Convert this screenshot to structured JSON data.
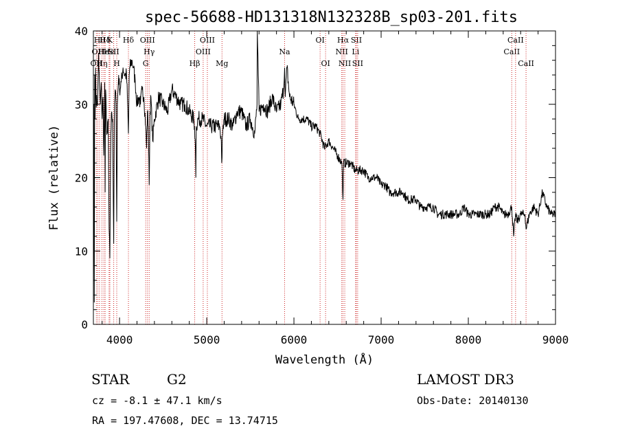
{
  "chart_data": {
    "type": "line",
    "title": "spec-56688-HD131318N132328B_sp03-201.fits",
    "xlabel": "Wavelength (Å)",
    "ylabel": "Flux (relative)",
    "xlim": [
      3700,
      9000
    ],
    "ylim": [
      0,
      40
    ],
    "xticks": [
      4000,
      5000,
      6000,
      7000,
      8000,
      9000
    ],
    "yticks": [
      0,
      10,
      20,
      30,
      40
    ],
    "series": [
      {
        "name": "spectrum",
        "x": [
          3700,
          3705,
          3710,
          3715,
          3720,
          3725,
          3730,
          3740,
          3750,
          3760,
          3770,
          3780,
          3790,
          3800,
          3810,
          3820,
          3830,
          3835,
          3840,
          3850,
          3860,
          3870,
          3880,
          3889,
          3900,
          3910,
          3920,
          3933,
          3940,
          3950,
          3960,
          3968,
          3975,
          3990,
          4000,
          4020,
          4040,
          4060,
          4080,
          4090,
          4102,
          4110,
          4120,
          4140,
          4160,
          4180,
          4200,
          4220,
          4240,
          4260,
          4280,
          4300,
          4310,
          4320,
          4330,
          4340,
          4350,
          4360,
          4380,
          4400,
          4450,
          4500,
          4550,
          4600,
          4650,
          4700,
          4750,
          4800,
          4850,
          4860,
          4870,
          4875,
          4880,
          4900,
          4950,
          5000,
          5050,
          5100,
          5150,
          5167,
          5172,
          5183,
          5200,
          5250,
          5300,
          5350,
          5400,
          5450,
          5500,
          5550,
          5577,
          5580,
          5600,
          5650,
          5700,
          5750,
          5800,
          5850,
          5880,
          5893,
          5900,
          5920,
          5950,
          6000,
          6050,
          6100,
          6150,
          6200,
          6250,
          6300,
          6350,
          6400,
          6450,
          6500,
          6550,
          6563,
          6570,
          6600,
          6650,
          6700,
          6750,
          6800,
          6850,
          6900,
          6950,
          7000,
          7050,
          7100,
          7150,
          7200,
          7250,
          7300,
          7350,
          7400,
          7450,
          7500,
          7550,
          7600,
          7650,
          7700,
          7750,
          7800,
          7850,
          7900,
          7950,
          8000,
          8050,
          8100,
          8150,
          8200,
          8250,
          8300,
          8350,
          8400,
          8450,
          8498,
          8520,
          8542,
          8560,
          8600,
          8620,
          8650,
          8662,
          8700,
          8750,
          8800,
          8850,
          8900,
          8950,
          9000
        ],
        "y": [
          5,
          30,
          3,
          34,
          28,
          35,
          31,
          30,
          31,
          37,
          32,
          30,
          33,
          28,
          31,
          23,
          33,
          18,
          32,
          27,
          26,
          28,
          13,
          9,
          26,
          29,
          28,
          11,
          28,
          32,
          30,
          14,
          30,
          34,
          32,
          33,
          35,
          34,
          34,
          31,
          26,
          34,
          35,
          36,
          35,
          33,
          30,
          31,
          30,
          32,
          31,
          27,
          24,
          29,
          27,
          19,
          29,
          31,
          25,
          28,
          31,
          30,
          29,
          32,
          31,
          30,
          30,
          29,
          28,
          27,
          24,
          20,
          27,
          28,
          28,
          27,
          27,
          27,
          27,
          25,
          22,
          26,
          28,
          28,
          27,
          29,
          29,
          27,
          28,
          26,
          30,
          40,
          29,
          30,
          29,
          31,
          29,
          30,
          32,
          35,
          31,
          35,
          31,
          30,
          28,
          28,
          28,
          27,
          27,
          26,
          24,
          25,
          24,
          23,
          22,
          17,
          22,
          22,
          22,
          21,
          21,
          21,
          20,
          20,
          20,
          19,
          19,
          18,
          18,
          18,
          18,
          17,
          17,
          17,
          16,
          16,
          16,
          16,
          15,
          15,
          15,
          15,
          15,
          15,
          16,
          15,
          15,
          15,
          15,
          15,
          15,
          16,
          16,
          15,
          15,
          16,
          12,
          15,
          14,
          15,
          15,
          15,
          13,
          15,
          16,
          15,
          18,
          16,
          15,
          15
        ]
      }
    ],
    "lines": [
      {
        "w": 3734,
        "label": "OII",
        "row": 2
      },
      {
        "w": 3750,
        "label": "OII",
        "row": 1
      },
      {
        "w": 3770,
        "label": "Hθ",
        "row": 0
      },
      {
        "w": 3798,
        "label": "Hη",
        "row": 2
      },
      {
        "w": 3820,
        "label": "He",
        "row": 1
      },
      {
        "w": 3835,
        "label": "Hδ",
        "row": 0
      },
      {
        "w": 3880,
        "label": "He",
        "row": 1
      },
      {
        "w": 3889,
        "label": "K",
        "row": 0
      },
      {
        "w": 3933,
        "label": "SII",
        "row": 1
      },
      {
        "w": 3968,
        "label": "H",
        "row": 2
      },
      {
        "w": 4102,
        "label": "Hδ",
        "row": 0
      },
      {
        "w": 4300,
        "label": "G",
        "row": 2
      },
      {
        "w": 4320,
        "label": "OIII",
        "row": 0
      },
      {
        "w": 4340,
        "label": "Hγ",
        "row": 1
      },
      {
        "w": 4862,
        "label": "Hβ",
        "row": 2
      },
      {
        "w": 4959,
        "label": "OIII",
        "row": 1
      },
      {
        "w": 5007,
        "label": "OIII",
        "row": 0
      },
      {
        "w": 5175,
        "label": "Mg",
        "row": 2
      },
      {
        "w": 5893,
        "label": "Na",
        "row": 1
      },
      {
        "w": 6300,
        "label": "OI",
        "row": 0
      },
      {
        "w": 6363,
        "label": "OI",
        "row": 2
      },
      {
        "w": 6548,
        "label": "NII",
        "row": 1
      },
      {
        "w": 6563,
        "label": "Hα",
        "row": 0
      },
      {
        "w": 6583,
        "label": "NII",
        "row": 2
      },
      {
        "w": 6707,
        "label": "Li",
        "row": 1
      },
      {
        "w": 6716,
        "label": "SII",
        "row": 0
      },
      {
        "w": 6731,
        "label": "SII",
        "row": 2
      },
      {
        "w": 8498,
        "label": "CaII",
        "row": 1
      },
      {
        "w": 8542,
        "label": "CaII",
        "row": 0
      },
      {
        "w": 8662,
        "label": "CaII",
        "row": 2
      }
    ],
    "colors": {
      "spectrum": "#000000",
      "lines": "#cc2222",
      "axes": "#000000"
    }
  },
  "info": {
    "class": "STAR",
    "subclass": "G2",
    "survey": "LAMOST DR3",
    "cz": "cz = -8.1 ± 47.1 km/s",
    "obs_date": "Obs-Date: 20140130",
    "coords": "RA = 197.47608, DEC =  13.74715"
  }
}
